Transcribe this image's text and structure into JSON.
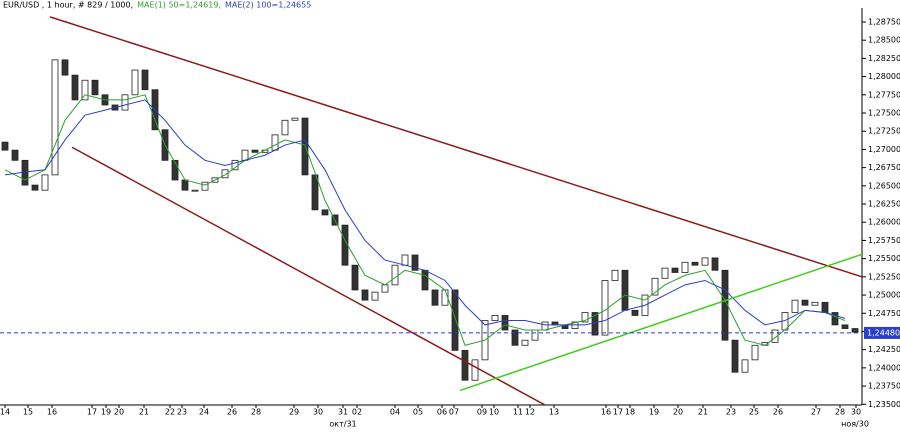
{
  "chart_data": {
    "type": "candlestick",
    "title": "EUR/USD , 1 hour, # 829 / 1000,",
    "up_color": "#ffffff",
    "down_color": "#333333",
    "x": [
      5,
      15,
      25,
      35,
      45,
      55,
      65,
      75,
      85,
      95,
      105,
      115,
      125,
      135,
      145,
      155,
      165,
      175,
      185,
      195,
      205,
      215,
      225,
      235,
      245,
      255,
      265,
      275,
      285,
      295,
      305,
      315,
      325,
      335,
      345,
      355,
      365,
      375,
      385,
      395,
      405,
      415,
      425,
      435,
      445,
      455,
      465,
      475,
      485,
      495,
      505,
      515,
      525,
      535,
      545,
      555,
      565,
      575,
      585,
      595,
      605,
      615,
      625,
      635,
      645,
      655,
      665,
      675,
      685,
      695,
      705,
      715,
      725,
      735,
      745,
      755,
      765,
      775,
      785,
      795,
      805,
      815,
      825,
      835,
      845,
      855
    ],
    "open": [
      1.271,
      1.2699,
      1.2685,
      1.2651,
      1.2644,
      1.2665,
      1.2823,
      1.2802,
      1.2768,
      1.2795,
      1.2775,
      1.2761,
      1.2754,
      1.2775,
      1.2809,
      1.2782,
      1.2727,
      1.2685,
      1.2658,
      1.2644,
      1.2644,
      1.2655,
      1.2661,
      1.2672,
      1.2685,
      1.2699,
      1.2696,
      1.2699,
      1.272,
      1.274,
      1.2743,
      1.2665,
      1.2617,
      1.261,
      1.2596,
      1.2541,
      1.2507,
      1.2493,
      1.2504,
      1.2514,
      1.2541,
      1.2555,
      1.2534,
      1.2507,
      1.2486,
      1.2507,
      1.2424,
      1.2383,
      1.2411,
      1.2465,
      1.2472,
      1.2452,
      1.2431,
      1.2438,
      1.2452,
      1.2463,
      1.2459,
      1.2454,
      1.2463,
      1.2476,
      1.2445,
      1.252,
      1.2534,
      1.2479,
      1.2472,
      1.25,
      1.2523,
      1.2537,
      1.2531,
      1.2545,
      1.2541,
      1.2551,
      1.2534,
      1.2438,
      1.2394,
      1.2411,
      1.2431,
      1.2435,
      1.2452,
      1.2476,
      1.2493,
      1.2486,
      1.249,
      1.2476,
      1.2459,
      1.2454
    ],
    "close": [
      1.2699,
      1.2685,
      1.2651,
      1.2644,
      1.2665,
      1.2823,
      1.2802,
      1.2768,
      1.2795,
      1.2775,
      1.2761,
      1.2754,
      1.2775,
      1.2809,
      1.2782,
      1.2727,
      1.2685,
      1.2658,
      1.2644,
      1.2644,
      1.2655,
      1.2661,
      1.2672,
      1.2685,
      1.2699,
      1.2696,
      1.2699,
      1.272,
      1.274,
      1.2743,
      1.2665,
      1.2617,
      1.261,
      1.2596,
      1.2541,
      1.2507,
      1.2493,
      1.2504,
      1.2514,
      1.2541,
      1.2555,
      1.2534,
      1.2507,
      1.2486,
      1.2507,
      1.2424,
      1.2383,
      1.2411,
      1.2465,
      1.2472,
      1.2452,
      1.2431,
      1.2438,
      1.2452,
      1.2463,
      1.2459,
      1.2454,
      1.2463,
      1.2476,
      1.2445,
      1.252,
      1.2534,
      1.2479,
      1.2472,
      1.25,
      1.2523,
      1.2537,
      1.2531,
      1.2545,
      1.2541,
      1.2551,
      1.2534,
      1.2438,
      1.2394,
      1.2411,
      1.2431,
      1.2435,
      1.2452,
      1.2476,
      1.2493,
      1.2486,
      1.249,
      1.2476,
      1.2459,
      1.2454,
      1.2449
    ],
    "series": [
      {
        "name": "MAE(1) 50=1,24619,",
        "color": "#2ca02c",
        "x": [
          5,
          25,
          45,
          65,
          85,
          105,
          125,
          145,
          165,
          185,
          205,
          225,
          245,
          265,
          285,
          305,
          325,
          345,
          365,
          385,
          405,
          425,
          445,
          465,
          485,
          505,
          525,
          545,
          565,
          585,
          605,
          625,
          645,
          665,
          685,
          705,
          725,
          745,
          765,
          785,
          805,
          825,
          845
        ],
        "values": [
          1.2672,
          1.2658,
          1.2672,
          1.274,
          1.2775,
          1.2768,
          1.2768,
          1.2775,
          1.2706,
          1.2658,
          1.2651,
          1.2665,
          1.2685,
          1.2699,
          1.2713,
          1.2706,
          1.263,
          1.2575,
          1.2527,
          1.2514,
          1.2534,
          1.2527,
          1.2507,
          1.2431,
          1.2438,
          1.2459,
          1.2452,
          1.2452,
          1.2459,
          1.2465,
          1.2479,
          1.25,
          1.2493,
          1.2514,
          1.2527,
          1.2534,
          1.2493,
          1.2438,
          1.2431,
          1.2452,
          1.2479,
          1.2476,
          1.2465
        ]
      },
      {
        "name": "MAE(2) 100=1,24655",
        "color": "#2b3fc8",
        "x": [
          5,
          25,
          45,
          65,
          85,
          105,
          125,
          145,
          165,
          185,
          205,
          225,
          245,
          265,
          285,
          305,
          325,
          345,
          365,
          385,
          405,
          425,
          445,
          465,
          485,
          505,
          525,
          545,
          565,
          585,
          605,
          625,
          645,
          665,
          685,
          705,
          725,
          745,
          765,
          785,
          805,
          825,
          845
        ],
        "values": [
          1.2665,
          1.2669,
          1.2672,
          1.2713,
          1.2747,
          1.2754,
          1.2761,
          1.2768,
          1.274,
          1.2706,
          1.2685,
          1.2678,
          1.2685,
          1.2692,
          1.2706,
          1.2713,
          1.2672,
          1.2617,
          1.2575,
          1.2548,
          1.2541,
          1.2534,
          1.252,
          1.2486,
          1.2459,
          1.2465,
          1.2465,
          1.2459,
          1.2459,
          1.2459,
          1.2465,
          1.2479,
          1.2486,
          1.25,
          1.2514,
          1.252,
          1.2507,
          1.2479,
          1.2459,
          1.2465,
          1.2479,
          1.2476,
          1.2468
        ]
      }
    ],
    "trendlines": [
      {
        "color": "#8b1a1a",
        "x": [
          50,
          862
        ],
        "y": [
          1.2882,
          1.2525
        ]
      },
      {
        "color": "#8b1a1a",
        "x": [
          72,
          545
        ],
        "y": [
          1.2703,
          1.2349
        ]
      },
      {
        "color": "#44cc22",
        "x": [
          460,
          862
        ],
        "y": [
          1.2369,
          1.2556
        ]
      }
    ],
    "current_price": {
      "value": 1.2448,
      "label": "1,24480"
    },
    "xlim": [
      0,
      862
    ],
    "ylim": [
      1.2349,
      1.28942
    ],
    "yticks": [
      {
        "value": 1.235,
        "label": "1,23500"
      },
      {
        "value": 1.2375,
        "label": "1,23750"
      },
      {
        "value": 1.24,
        "label": "1,24000"
      },
      {
        "value": 1.2425,
        "label": "1,24250"
      },
      {
        "value": 1.245,
        "label": "1,24500"
      },
      {
        "value": 1.2475,
        "label": "1,24750"
      },
      {
        "value": 1.25,
        "label": "1,25000"
      },
      {
        "value": 1.2525,
        "label": "1,25250"
      },
      {
        "value": 1.255,
        "label": "1,25500"
      },
      {
        "value": 1.2575,
        "label": "1,25750"
      },
      {
        "value": 1.26,
        "label": "1,26000"
      },
      {
        "value": 1.2625,
        "label": "1,26250"
      },
      {
        "value": 1.265,
        "label": "1,26500"
      },
      {
        "value": 1.2675,
        "label": "1,26750"
      },
      {
        "value": 1.27,
        "label": "1,27000"
      },
      {
        "value": 1.2725,
        "label": "1,27250"
      },
      {
        "value": 1.275,
        "label": "1,27500"
      },
      {
        "value": 1.2775,
        "label": "1,27750"
      },
      {
        "value": 1.28,
        "label": "1,28000"
      },
      {
        "value": 1.2825,
        "label": "1,28250"
      },
      {
        "value": 1.285,
        "label": "1,28500"
      },
      {
        "value": 1.2875,
        "label": "1,28750"
      }
    ],
    "xticks": [
      {
        "value": 5,
        "label": "14"
      },
      {
        "value": 28,
        "label": "15"
      },
      {
        "value": 52,
        "label": "16"
      },
      {
        "value": 92,
        "label": "17"
      },
      {
        "value": 106,
        "label": "19"
      },
      {
        "value": 119,
        "label": "20"
      },
      {
        "value": 144,
        "label": "21"
      },
      {
        "value": 170,
        "label": "22"
      },
      {
        "value": 182,
        "label": "23"
      },
      {
        "value": 204,
        "label": "24"
      },
      {
        "value": 232,
        "label": "26"
      },
      {
        "value": 256,
        "label": "28"
      },
      {
        "value": 294,
        "label": "29"
      },
      {
        "value": 318,
        "label": "30"
      },
      {
        "value": 343,
        "label": "31"
      },
      {
        "value": 357,
        "label": "02"
      },
      {
        "value": 395,
        "label": "04"
      },
      {
        "value": 418,
        "label": "05"
      },
      {
        "value": 442,
        "label": "06"
      },
      {
        "value": 454,
        "label": "07"
      },
      {
        "value": 482,
        "label": "09"
      },
      {
        "value": 494,
        "label": "10"
      },
      {
        "value": 518,
        "label": "11"
      },
      {
        "value": 530,
        "label": "12"
      },
      {
        "value": 554,
        "label": "13"
      },
      {
        "value": 606,
        "label": "16"
      },
      {
        "value": 618,
        "label": "17"
      },
      {
        "value": 630,
        "label": "18"
      },
      {
        "value": 654,
        "label": "19"
      },
      {
        "value": 678,
        "label": "20"
      },
      {
        "value": 703,
        "label": "21"
      },
      {
        "value": 731,
        "label": "23"
      },
      {
        "value": 754,
        "label": "25"
      },
      {
        "value": 778,
        "label": "26"
      },
      {
        "value": 816,
        "label": "27"
      },
      {
        "value": 840,
        "label": "28"
      },
      {
        "value": 856,
        "label": "30"
      }
    ],
    "xticks2": [
      {
        "value": 343,
        "label": "окт/31"
      },
      {
        "value": 855,
        "label": "ноя/30"
      }
    ]
  }
}
